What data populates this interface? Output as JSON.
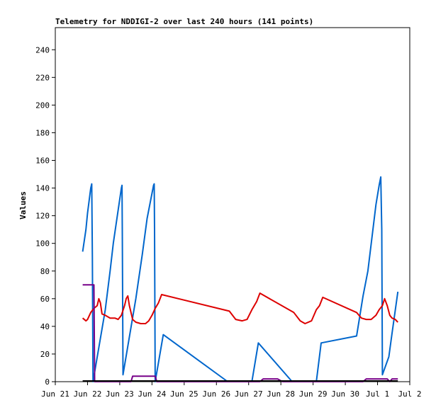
{
  "chart_data": {
    "type": "line",
    "title": "Telemetry for NDDIGI-2 over last 240 hours (141 points)",
    "xlabel": "",
    "ylabel": "Values",
    "x_unit": "days (fractional day numbers, June/July)",
    "xlim": [
      21.0,
      32.0
    ],
    "ylim": [
      0,
      256
    ],
    "x_ticks": [
      {
        "v": 21,
        "label": "Jun 21"
      },
      {
        "v": 22,
        "label": "Jun 22"
      },
      {
        "v": 23,
        "label": "Jun 23"
      },
      {
        "v": 24,
        "label": "Jun 24"
      },
      {
        "v": 25,
        "label": "Jun 25"
      },
      {
        "v": 26,
        "label": "Jun 26"
      },
      {
        "v": 27,
        "label": "Jun 27"
      },
      {
        "v": 28,
        "label": "Jun 28"
      },
      {
        "v": 29,
        "label": "Jun 29"
      },
      {
        "v": 30,
        "label": "Jun 30"
      },
      {
        "v": 31,
        "label": "Jul 1"
      },
      {
        "v": 32,
        "label": "Jul 2"
      }
    ],
    "y_ticks": [
      0,
      20,
      40,
      60,
      80,
      100,
      120,
      140,
      160,
      180,
      200,
      220,
      240
    ],
    "grid": false,
    "series": [
      {
        "color": "#0066cc",
        "points": [
          [
            21.85,
            94
          ],
          [
            21.95,
            110
          ],
          [
            22.0,
            122
          ],
          [
            22.1,
            140
          ],
          [
            22.13,
            143
          ],
          [
            22.15,
            90
          ],
          [
            22.17,
            0
          ],
          [
            22.55,
            52
          ],
          [
            22.7,
            80
          ],
          [
            22.8,
            100
          ],
          [
            23.05,
            140
          ],
          [
            23.07,
            142
          ],
          [
            23.08,
            110
          ],
          [
            23.1,
            5
          ],
          [
            23.5,
            60
          ],
          [
            23.7,
            92
          ],
          [
            23.85,
            118
          ],
          [
            24.05,
            142
          ],
          [
            24.07,
            143
          ],
          [
            24.08,
            110
          ],
          [
            24.1,
            0
          ],
          [
            24.35,
            34
          ],
          [
            26.35,
            0
          ],
          [
            27.1,
            0
          ],
          [
            27.3,
            28
          ],
          [
            28.35,
            0
          ],
          [
            29.1,
            0
          ],
          [
            29.25,
            28
          ],
          [
            30.35,
            33
          ],
          [
            30.55,
            62
          ],
          [
            30.7,
            80
          ],
          [
            30.95,
            128
          ],
          [
            31.05,
            142
          ],
          [
            31.1,
            148
          ],
          [
            31.13,
            110
          ],
          [
            31.15,
            5
          ],
          [
            31.35,
            18
          ],
          [
            31.45,
            35
          ],
          [
            31.63,
            65
          ]
        ]
      },
      {
        "color": "#dd0000",
        "points": [
          [
            21.85,
            46
          ],
          [
            21.95,
            44
          ],
          [
            22.0,
            45
          ],
          [
            22.1,
            50
          ],
          [
            22.2,
            53
          ],
          [
            22.3,
            55
          ],
          [
            22.35,
            60
          ],
          [
            22.4,
            57
          ],
          [
            22.45,
            49
          ],
          [
            22.55,
            48
          ],
          [
            22.7,
            46
          ],
          [
            22.85,
            46
          ],
          [
            22.95,
            45
          ],
          [
            23.05,
            48
          ],
          [
            23.15,
            55
          ],
          [
            23.2,
            60
          ],
          [
            23.25,
            62
          ],
          [
            23.3,
            55
          ],
          [
            23.4,
            45
          ],
          [
            23.5,
            43
          ],
          [
            23.65,
            42
          ],
          [
            23.8,
            42
          ],
          [
            23.9,
            44
          ],
          [
            24.0,
            48
          ],
          [
            24.1,
            53
          ],
          [
            24.2,
            57
          ],
          [
            24.3,
            63
          ],
          [
            26.4,
            51
          ],
          [
            26.6,
            45
          ],
          [
            26.8,
            44
          ],
          [
            26.95,
            45
          ],
          [
            27.1,
            52
          ],
          [
            27.25,
            58
          ],
          [
            27.35,
            64
          ],
          [
            28.4,
            50
          ],
          [
            28.6,
            44
          ],
          [
            28.75,
            42
          ],
          [
            28.95,
            44
          ],
          [
            29.1,
            52
          ],
          [
            29.2,
            55
          ],
          [
            29.3,
            61
          ],
          [
            30.35,
            50
          ],
          [
            30.5,
            46
          ],
          [
            30.65,
            45
          ],
          [
            30.8,
            45
          ],
          [
            30.95,
            48
          ],
          [
            31.05,
            52
          ],
          [
            31.15,
            55
          ],
          [
            31.22,
            60
          ],
          [
            31.3,
            55
          ],
          [
            31.38,
            48
          ],
          [
            31.45,
            46
          ],
          [
            31.55,
            45
          ],
          [
            31.63,
            43
          ]
        ]
      },
      {
        "color": "#770088",
        "points": [
          [
            21.85,
            70
          ],
          [
            22.2,
            70
          ],
          [
            22.22,
            0
          ],
          [
            23.35,
            0
          ],
          [
            23.4,
            4
          ],
          [
            24.1,
            4
          ],
          [
            24.15,
            0
          ],
          [
            27.35,
            0
          ],
          [
            27.45,
            2
          ],
          [
            27.9,
            2
          ],
          [
            28.05,
            0
          ],
          [
            30.55,
            0
          ],
          [
            30.65,
            2
          ],
          [
            31.3,
            2
          ],
          [
            31.38,
            0
          ],
          [
            31.45,
            2
          ],
          [
            31.63,
            2
          ]
        ]
      },
      {
        "color": "#000000",
        "points": [
          [
            21.85,
            0.5
          ],
          [
            31.63,
            0.5
          ]
        ]
      }
    ]
  }
}
